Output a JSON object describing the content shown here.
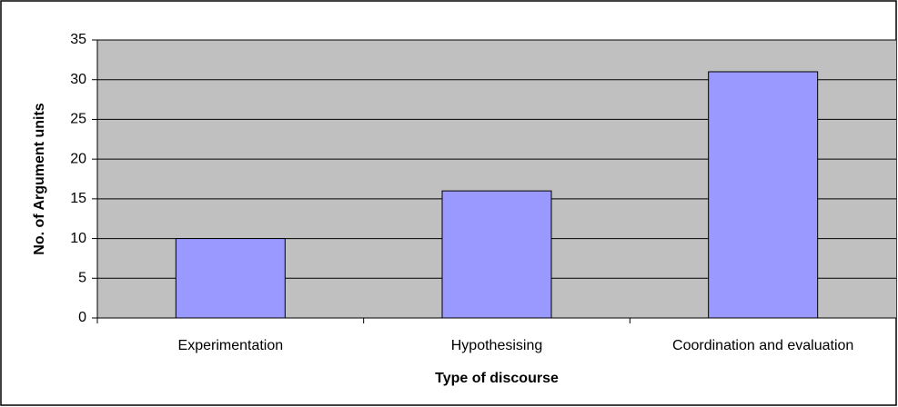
{
  "chart_data": {
    "type": "bar",
    "x_label": "Type of discourse",
    "y_label": "No. of Argument units",
    "categories": [
      "Experimentation",
      "Hypothesising",
      "Coordination and evaluation"
    ],
    "values": [
      10,
      16,
      31
    ],
    "color": "#9999ff",
    "ylim": [
      0,
      35
    ],
    "yticks": [
      0,
      5,
      10,
      15,
      20,
      25,
      30,
      35
    ],
    "grid": true
  }
}
